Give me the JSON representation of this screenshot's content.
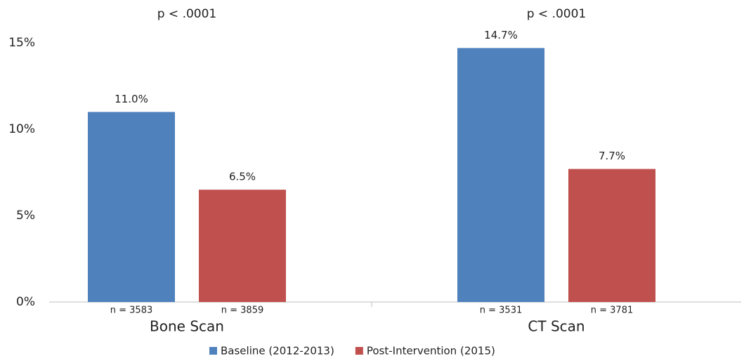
{
  "chart_data": {
    "type": "bar",
    "categories": [
      "Bone Scan",
      "CT Scan"
    ],
    "group_annotations": [
      "p < .0001",
      "p < .0001"
    ],
    "series": [
      {
        "name": "Baseline (2012-2013)",
        "color": "#4f81bd",
        "values": [
          11.0,
          14.7
        ],
        "value_labels": [
          "11.0%",
          "14.7%"
        ],
        "sample_labels": [
          "n = 3583",
          "n = 3531"
        ]
      },
      {
        "name": "Post-Intervention (2015)",
        "color": "#c0504d",
        "values": [
          6.5,
          7.7
        ],
        "value_labels": [
          "6.5%",
          "7.7%"
        ],
        "sample_labels": [
          "n = 3859",
          "n = 3781"
        ]
      }
    ],
    "ylim": [
      0,
      15
    ],
    "yticks": [
      {
        "value": 0,
        "label": "0%"
      },
      {
        "value": 5,
        "label": "5%"
      },
      {
        "value": 10,
        "label": "10%"
      },
      {
        "value": 15,
        "label": "15%"
      }
    ],
    "grid": false
  }
}
